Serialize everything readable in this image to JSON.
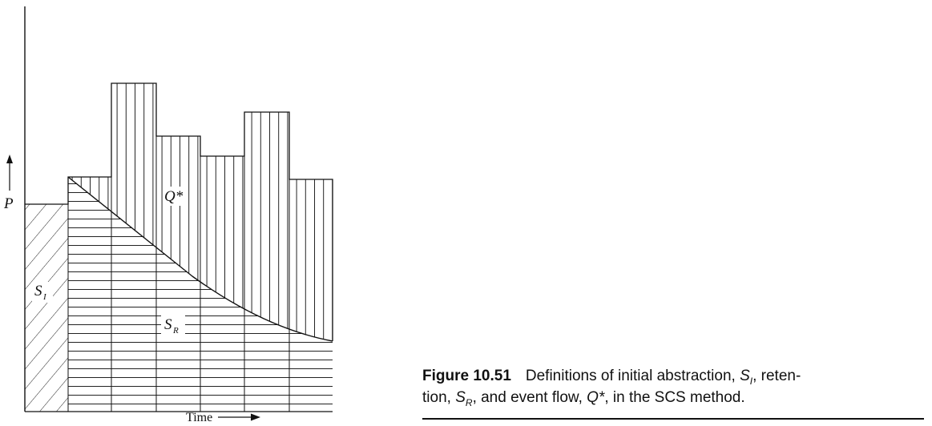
{
  "diagram": {
    "y_axis_label": "P",
    "x_axis_label": "Time",
    "region_initial_abstraction": {
      "main": "S",
      "sub": "I"
    },
    "region_retention": {
      "main": "S",
      "sub": "R"
    },
    "region_event_flow": "Q*",
    "bar_heights_relative": [
      0.6,
      0.71,
      1.0,
      0.8,
      0.72,
      0.89,
      0.7
    ]
  },
  "caption": {
    "figure_number": "Figure 10.51",
    "text_1": "Definitions of initial abstraction, ",
    "s_i_main": "S",
    "s_i_sub": "I",
    "text_2": ", reten-",
    "text_3": "tion, ",
    "s_r_main": "S",
    "s_r_sub": "R",
    "text_4": ", and event flow, ",
    "q_star": "Q*",
    "text_5": ", in the SCS method."
  }
}
